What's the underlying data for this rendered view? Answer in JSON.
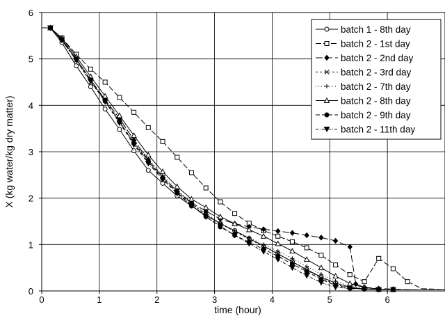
{
  "chart_data": {
    "type": "line",
    "xlabel": "time (hour)",
    "ylabel": "X (kg water/kg dry matter)",
    "xlim": [
      0,
      7
    ],
    "ylim": [
      0,
      6
    ],
    "xticks": [
      0,
      1,
      2,
      3,
      4,
      5,
      6
    ],
    "yticks": [
      0,
      1,
      2,
      3,
      4,
      5,
      6
    ],
    "grid": true,
    "legend_position": "top-right",
    "series": [
      {
        "name": "batch 1 - 8th day",
        "marker": "circle-open",
        "dash": "",
        "x": [
          0.0,
          0.15,
          0.35,
          0.6,
          0.85,
          1.1,
          1.35,
          1.6,
          1.85,
          2.1,
          2.35,
          2.6,
          2.85,
          3.1,
          3.35,
          3.6,
          3.85,
          4.1,
          4.35,
          4.6,
          4.85,
          5.1,
          5.35,
          5.6,
          5.85,
          6.1,
          6.5,
          7.0
        ],
        "y": [
          5.67,
          5.67,
          5.35,
          4.85,
          4.4,
          3.92,
          3.48,
          3.02,
          2.6,
          2.32,
          2.05,
          1.83,
          1.63,
          1.45,
          1.3,
          1.13,
          0.97,
          0.8,
          0.63,
          0.46,
          0.3,
          0.17,
          0.08,
          0.04,
          0.03,
          0.03,
          0.03,
          0.03
        ]
      },
      {
        "name": "batch 2 - 1st day",
        "marker": "square-open",
        "dash": "8,3",
        "x": [
          0.0,
          0.15,
          0.35,
          0.6,
          0.85,
          1.1,
          1.35,
          1.6,
          1.85,
          2.1,
          2.35,
          2.6,
          2.85,
          3.1,
          3.35,
          3.6,
          3.85,
          4.1,
          4.35,
          4.6,
          4.85,
          5.1,
          5.35,
          5.6,
          5.85,
          6.1,
          6.35,
          6.6,
          7.0
        ],
        "y": [
          5.67,
          5.67,
          5.45,
          5.1,
          4.78,
          4.5,
          4.17,
          3.85,
          3.52,
          3.22,
          2.88,
          2.55,
          2.22,
          1.92,
          1.67,
          1.46,
          1.3,
          1.18,
          1.06,
          0.93,
          0.77,
          0.56,
          0.35,
          0.2,
          0.7,
          0.48,
          0.2,
          0.05,
          0.03
        ]
      },
      {
        "name": "batch 2 - 2nd day",
        "marker": "diamond-filled",
        "dash": "10,4",
        "x": [
          0.0,
          0.15,
          0.35,
          0.6,
          0.85,
          1.1,
          1.35,
          1.6,
          1.85,
          2.1,
          2.35,
          2.6,
          2.85,
          3.1,
          3.35,
          3.6,
          3.85,
          4.1,
          4.35,
          4.6,
          4.85,
          5.1,
          5.35,
          5.45,
          5.6,
          5.85,
          6.1,
          6.5,
          7.0
        ],
        "y": [
          5.67,
          5.67,
          5.42,
          5.0,
          4.55,
          4.12,
          3.72,
          3.25,
          2.82,
          2.45,
          2.15,
          1.9,
          1.72,
          1.55,
          1.45,
          1.38,
          1.33,
          1.29,
          1.25,
          1.2,
          1.15,
          1.08,
          0.95,
          0.15,
          0.08,
          0.05,
          0.04,
          0.03,
          0.03
        ]
      },
      {
        "name": "batch 2 - 3rd day",
        "marker": "x",
        "dash": "3,3",
        "x": [
          0.0,
          0.15,
          0.35,
          0.6,
          0.85,
          1.1,
          1.35,
          1.6,
          1.85,
          2.1,
          2.35,
          2.6,
          2.85,
          3.1,
          3.35,
          3.6,
          3.85,
          4.1,
          4.35,
          4.6,
          4.85,
          5.1,
          5.35,
          5.6,
          5.85,
          6.1,
          6.5,
          7.0
        ],
        "y": [
          5.67,
          5.67,
          5.4,
          4.97,
          4.5,
          4.1,
          3.65,
          3.2,
          2.8,
          2.45,
          2.15,
          1.88,
          1.65,
          1.45,
          1.28,
          1.12,
          0.96,
          0.8,
          0.63,
          0.45,
          0.28,
          0.14,
          0.06,
          0.04,
          0.03,
          0.03,
          0.03,
          0.03
        ]
      },
      {
        "name": "batch 2 - 7th day",
        "marker": "plus",
        "dash": "1,3",
        "x": [
          0.0,
          0.15,
          0.35,
          0.6,
          0.85,
          1.1,
          1.35,
          1.6,
          1.85,
          2.1,
          2.35,
          2.6,
          2.85,
          3.1,
          3.35,
          3.6,
          3.85,
          4.1,
          4.35,
          4.6,
          4.85,
          5.1,
          5.35,
          5.6,
          5.85,
          6.1,
          6.5,
          7.0
        ],
        "y": [
          5.67,
          5.67,
          5.42,
          4.99,
          4.55,
          4.12,
          3.7,
          3.25,
          2.85,
          2.48,
          2.18,
          1.9,
          1.66,
          1.46,
          1.3,
          1.15,
          1.0,
          0.86,
          0.7,
          0.53,
          0.36,
          0.21,
          0.1,
          0.05,
          0.04,
          0.03,
          0.03,
          0.03
        ]
      },
      {
        "name": "batch 2 - 8th day",
        "marker": "triangle-open",
        "dash": "",
        "x": [
          0.0,
          0.15,
          0.35,
          0.6,
          0.85,
          1.1,
          1.35,
          1.6,
          1.85,
          2.1,
          2.35,
          2.6,
          2.85,
          3.1,
          3.35,
          3.6,
          3.85,
          4.1,
          4.35,
          4.6,
          4.85,
          5.1,
          5.35,
          5.6,
          5.85,
          6.1,
          6.5,
          7.0
        ],
        "y": [
          5.67,
          5.67,
          5.45,
          5.05,
          4.62,
          4.2,
          3.78,
          3.35,
          2.93,
          2.57,
          2.25,
          1.98,
          1.8,
          1.6,
          1.45,
          1.32,
          1.18,
          1.02,
          0.86,
          0.68,
          0.5,
          0.32,
          0.16,
          0.07,
          0.04,
          0.03,
          0.03,
          0.03
        ]
      },
      {
        "name": "batch 2 - 9th day",
        "marker": "circle-filled",
        "dash": "6,3",
        "x": [
          0.0,
          0.15,
          0.35,
          0.6,
          0.85,
          1.1,
          1.35,
          1.6,
          1.85,
          2.1,
          2.35,
          2.6,
          2.85,
          3.1,
          3.35,
          3.6,
          3.85,
          4.1,
          4.35,
          4.6,
          4.85,
          5.1,
          5.35,
          5.6,
          5.85,
          6.1,
          6.5,
          7.0
        ],
        "y": [
          5.67,
          5.67,
          5.42,
          5.0,
          4.55,
          4.1,
          3.65,
          3.18,
          2.78,
          2.42,
          2.12,
          1.85,
          1.6,
          1.38,
          1.2,
          1.05,
          0.9,
          0.75,
          0.58,
          0.42,
          0.25,
          0.12,
          0.06,
          0.04,
          0.03,
          0.03,
          0.03,
          0.03
        ]
      },
      {
        "name": "batch 2 - 11th day",
        "marker": "triangle-down-filled",
        "dash": "4,2,1,2",
        "x": [
          0.0,
          0.15,
          0.35,
          0.6,
          0.85,
          1.1,
          1.35,
          1.6,
          1.85,
          2.1,
          2.35,
          2.6,
          2.85,
          3.1,
          3.35,
          3.6,
          3.85,
          4.1,
          4.35,
          4.6,
          4.85,
          5.1,
          5.35,
          5.6,
          5.85,
          6.1,
          6.5,
          7.0
        ],
        "y": [
          5.67,
          5.67,
          5.4,
          4.97,
          4.52,
          4.08,
          3.62,
          3.15,
          2.75,
          2.4,
          2.1,
          1.84,
          1.6,
          1.4,
          1.2,
          1.02,
          0.85,
          0.68,
          0.5,
          0.33,
          0.18,
          0.08,
          0.05,
          0.04,
          0.03,
          0.03,
          0.03,
          0.03
        ]
      }
    ]
  }
}
